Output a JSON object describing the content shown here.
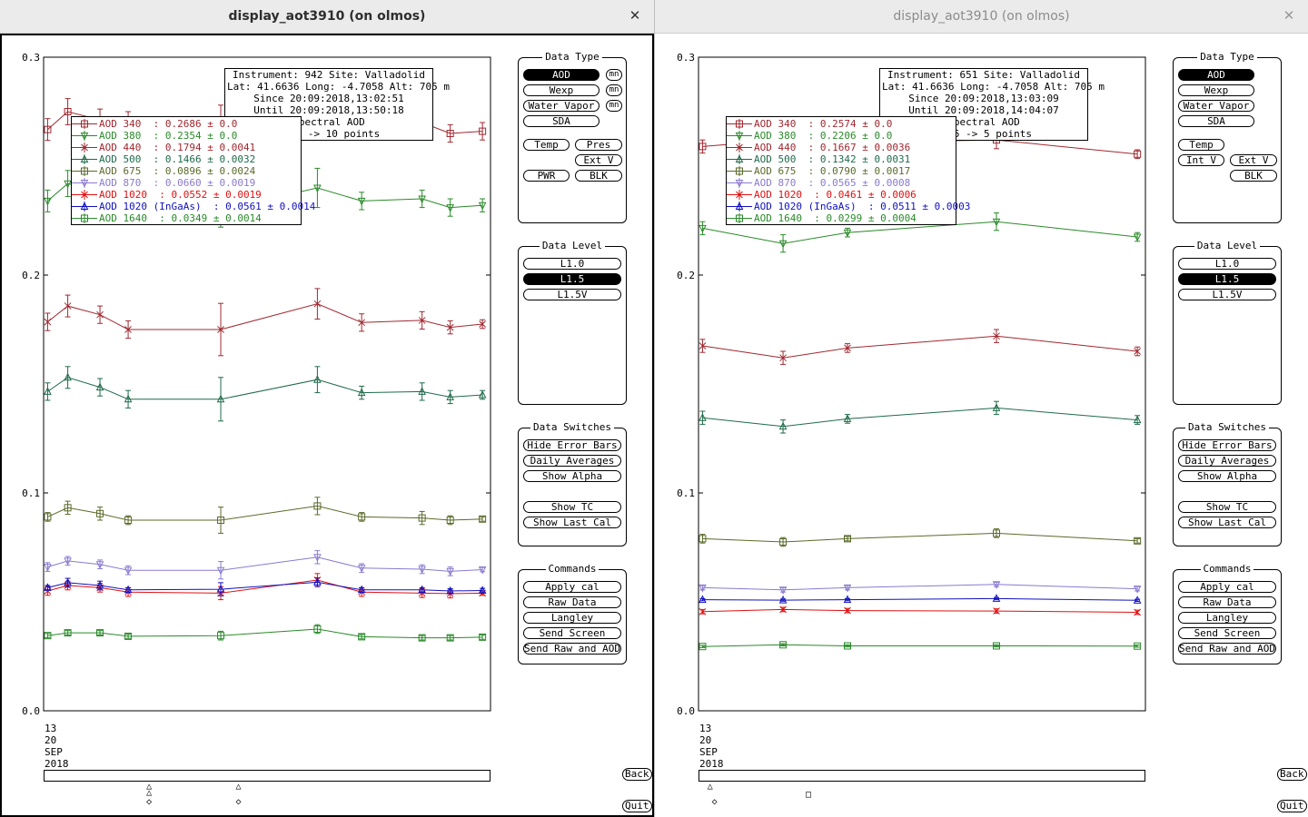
{
  "windows": [
    {
      "title": "display_aot3910 (on olmos)",
      "active": true,
      "info": {
        "lines": [
          "Instrument: 942 Site: Valladolid",
          "Lat: 41.6636 Long: -4.7058 Alt: 705 m",
          "Since 20:09:2018,13:02:51",
          "Until 20:09:2018,13:50:18",
          "Spectral AOD",
          "L1.5 -> 10 points"
        ]
      },
      "legend": [
        {
          "label": "AOD 340  : 0.2686 ± 0.0",
          "color": "#a02830",
          "marker": "square"
        },
        {
          "label": "AOD 380  : 0.2354 ± 0.0",
          "color": "#2a8a2a",
          "marker": "tri-down"
        },
        {
          "label": "AOD 440  : 0.1794 ± 0.0041",
          "color": "#a02830",
          "marker": "x"
        },
        {
          "label": "AOD 500  : 0.1466 ± 0.0032",
          "color": "#1f6a4a",
          "marker": "tri-up"
        },
        {
          "label": "AOD 675  : 0.0896 ± 0.0024",
          "color": "#5a6a2a",
          "marker": "square"
        },
        {
          "label": "AOD 870  : 0.0660 ± 0.0019",
          "color": "#8a7ad0",
          "marker": "tri-down"
        },
        {
          "label": "AOD 1020  : 0.0552 ± 0.0019",
          "color": "#e01010",
          "marker": "x"
        },
        {
          "label": "AOD 1020 (InGaAs)  : 0.0561 ± 0.0014",
          "color": "#1010c0",
          "marker": "tri-up"
        },
        {
          "label": "AOD 1640  : 0.0349 ± 0.0014",
          "color": "#2a8a2a",
          "marker": "square"
        }
      ],
      "date_label": [
        "13",
        "20",
        "SEP",
        "2018"
      ],
      "chart_data": {
        "type": "line",
        "ylim": [
          0,
          0.3
        ],
        "yticks": [
          "0.0",
          "0.1",
          "0.2",
          "0.3"
        ],
        "x": [
          0.5,
          3.0,
          7.0,
          10.5,
          22.0,
          34.0,
          39.5,
          47.0,
          50.5,
          54.5
        ],
        "xlim": [
          0,
          55.5
        ],
        "series": [
          {
            "name": "AOD 340",
            "color": "#a02830",
            "marker": "square",
            "values": [
              0.2668,
              0.275,
              0.2712,
              0.27,
              0.27,
              0.276,
              0.2705,
              0.27,
              0.265,
              0.266
            ],
            "err": [
              0.005,
              0.006,
              0.005,
              0.005,
              0.008,
              0.007,
              0.005,
              0.006,
              0.004,
              0.004
            ]
          },
          {
            "name": "AOD 380",
            "color": "#2a8a2a",
            "marker": "tri-down",
            "values": [
              0.234,
              0.242,
              0.238,
              0.233,
              0.23,
              0.24,
              0.234,
              0.235,
              0.231,
              0.232
            ],
            "err": [
              0.005,
              0.006,
              0.005,
              0.005,
              0.008,
              0.009,
              0.004,
              0.004,
              0.004,
              0.003
            ]
          },
          {
            "name": "AOD 440",
            "color": "#a02830",
            "marker": "x",
            "values": [
              0.1785,
              0.1858,
              0.1818,
              0.175,
              0.175,
              0.1868,
              0.1782,
              0.1792,
              0.176,
              0.1775
            ],
            "err": [
              0.004,
              0.005,
              0.004,
              0.004,
              0.012,
              0.007,
              0.004,
              0.004,
              0.003,
              0.002
            ]
          },
          {
            "name": "AOD 500",
            "color": "#1f6a4a",
            "marker": "tri-up",
            "values": [
              0.1465,
              0.153,
              0.1485,
              0.143,
              0.143,
              0.152,
              0.146,
              0.1465,
              0.144,
              0.145
            ],
            "err": [
              0.004,
              0.005,
              0.004,
              0.004,
              0.01,
              0.006,
              0.003,
              0.004,
              0.003,
              0.002
            ]
          },
          {
            "name": "AOD 675",
            "color": "#5a6a2a",
            "marker": "square",
            "values": [
              0.089,
              0.0932,
              0.0905,
              0.0875,
              0.0875,
              0.094,
              0.089,
              0.0885,
              0.0875,
              0.088
            ],
            "err": [
              0.002,
              0.003,
              0.003,
              0.002,
              0.006,
              0.004,
              0.002,
              0.003,
              0.002,
              0.001
            ]
          },
          {
            "name": "AOD 870",
            "color": "#8a7ad0",
            "marker": "tri-down",
            "values": [
              0.066,
              0.0688,
              0.0672,
              0.0645,
              0.0645,
              0.0705,
              0.0655,
              0.065,
              0.064,
              0.0648
            ],
            "err": [
              0.002,
              0.002,
              0.002,
              0.002,
              0.004,
              0.003,
              0.002,
              0.002,
              0.002,
              0.001
            ]
          },
          {
            "name": "AOD 1020",
            "color": "#e01010",
            "marker": "x",
            "values": [
              0.055,
              0.0575,
              0.0565,
              0.0545,
              0.054,
              0.06,
              0.0545,
              0.054,
              0.0538,
              0.054
            ],
            "err": [
              0.002,
              0.002,
              0.002,
              0.002,
              0.003,
              0.003,
              0.002,
              0.002,
              0.002,
              0.001
            ]
          },
          {
            "name": "AOD 1020 (InGaAs)",
            "color": "#1010c0",
            "marker": "tri-up",
            "values": [
              0.0565,
              0.0588,
              0.0575,
              0.0555,
              0.0558,
              0.059,
              0.0555,
              0.0555,
              0.055,
              0.0552
            ],
            "err": [
              0.001,
              0.002,
              0.002,
              0.001,
              0.003,
              0.002,
              0.001,
              0.001,
              0.001,
              0.001
            ]
          },
          {
            "name": "AOD 1640",
            "color": "#2a8a2a",
            "marker": "square",
            "values": [
              0.0345,
              0.0358,
              0.0358,
              0.0342,
              0.0345,
              0.0375,
              0.034,
              0.0335,
              0.0335,
              0.0338
            ],
            "err": [
              0.001,
              0.001,
              0.001,
              0.001,
              0.002,
              0.002,
              0.001,
              0.001,
              0.001,
              0.001
            ]
          }
        ]
      },
      "slider_marks": [
        {
          "pos": 0.24,
          "sym": "△",
          "row": 0
        },
        {
          "pos": 0.24,
          "sym": "△",
          "row": 0.4
        },
        {
          "pos": 0.24,
          "sym": "◇",
          "row": 1
        },
        {
          "pos": 0.44,
          "sym": "△",
          "row": 0
        },
        {
          "pos": 0.44,
          "sym": "◇",
          "row": 1
        }
      ],
      "panels": {
        "data_type": {
          "title": "Data Type",
          "buttons": [
            {
              "label": "AOD",
              "selected": true
            },
            {
              "label": "Wexp"
            },
            {
              "label": "Water Vapor"
            },
            {
              "label": "SDA"
            },
            {
              "label": "Temp"
            },
            {
              "label": "Pres"
            },
            {
              "label": "Ext V"
            },
            {
              "label": "PWR"
            },
            {
              "label": "BLK"
            }
          ],
          "mini": [
            "mn",
            "mn",
            "mn"
          ]
        },
        "data_level": {
          "title": "Data Level",
          "buttons": [
            {
              "label": "L1.0"
            },
            {
              "label": "L1.5",
              "selected": true
            },
            {
              "label": "L1.5V"
            }
          ]
        },
        "data_switches": {
          "title": "Data Switches",
          "buttons": [
            {
              "label": "Hide Error Bars"
            },
            {
              "label": "Daily Averages"
            },
            {
              "label": "Show Alpha"
            },
            {
              "label": "Show TC"
            },
            {
              "label": "Show Last Cal"
            }
          ]
        },
        "commands": {
          "title": "Commands",
          "buttons": [
            {
              "label": "Apply cal"
            },
            {
              "label": "Raw Data"
            },
            {
              "label": "Langley"
            },
            {
              "label": "Send Screen"
            },
            {
              "label": "Send Raw and AOD"
            }
          ]
        }
      },
      "back_label": "Back",
      "quit_label": "Quit"
    },
    {
      "title": "display_aot3910 (on olmos)",
      "active": false,
      "info": {
        "lines": [
          "Instrument: 651 Site: Valladolid",
          "Lat: 41.6636 Long: -4.7058 Alt: 705 m",
          "Since 20:09:2018,13:03:09",
          "Until 20:09:2018,14:04:07",
          "Spectral AOD",
          "L1.5 -> 5 points"
        ]
      },
      "legend": [
        {
          "label": "AOD 340  : 0.2574 ± 0.0",
          "color": "#a02830",
          "marker": "square"
        },
        {
          "label": "AOD 380  : 0.2206 ± 0.0",
          "color": "#2a8a2a",
          "marker": "tri-down"
        },
        {
          "label": "AOD 440  : 0.1667 ± 0.0036",
          "color": "#a02830",
          "marker": "x"
        },
        {
          "label": "AOD 500  : 0.1342 ± 0.0031",
          "color": "#1f6a4a",
          "marker": "tri-up"
        },
        {
          "label": "AOD 675  : 0.0790 ± 0.0017",
          "color": "#5a6a2a",
          "marker": "square"
        },
        {
          "label": "AOD 870  : 0.0565 ± 0.0008",
          "color": "#8a7ad0",
          "marker": "tri-down"
        },
        {
          "label": "AOD 1020  : 0.0461 ± 0.0006",
          "color": "#e01010",
          "marker": "x"
        },
        {
          "label": "AOD 1020 (InGaAs)  : 0.0511 ± 0.0003",
          "color": "#1010c0",
          "marker": "tri-up"
        },
        {
          "label": "AOD 1640  : 0.0299 ± 0.0004",
          "color": "#2a8a2a",
          "marker": "square"
        }
      ],
      "date_label": [
        "13",
        "20",
        "SEP",
        "2018"
      ],
      "chart_data": {
        "type": "line",
        "ylim": [
          0,
          0.3
        ],
        "yticks": [
          "0.0",
          "0.1",
          "0.2",
          "0.3"
        ],
        "x": [
          0.5,
          10.5,
          18.5,
          37.0,
          54.5
        ],
        "xlim": [
          0,
          55.5
        ],
        "series": [
          {
            "name": "AOD 340",
            "color": "#a02830",
            "marker": "square",
            "values": [
              0.259,
              0.262,
              0.261,
              0.262,
              0.2555
            ],
            "err": [
              0.003,
              0.004,
              0.003,
              0.004,
              0.002
            ]
          },
          {
            "name": "AOD 380",
            "color": "#2a8a2a",
            "marker": "tri-down",
            "values": [
              0.2215,
              0.2145,
              0.2195,
              0.2245,
              0.2175
            ],
            "err": [
              0.003,
              0.004,
              0.002,
              0.004,
              0.002
            ]
          },
          {
            "name": "AOD 440",
            "color": "#a02830",
            "marker": "x",
            "values": [
              0.1675,
              0.162,
              0.1665,
              0.172,
              0.165
            ],
            "err": [
              0.003,
              0.003,
              0.002,
              0.003,
              0.002
            ]
          },
          {
            "name": "AOD 500",
            "color": "#1f6a4a",
            "marker": "tri-up",
            "values": [
              0.1345,
              0.1305,
              0.134,
              0.139,
              0.1335
            ],
            "err": [
              0.003,
              0.003,
              0.002,
              0.003,
              0.002
            ]
          },
          {
            "name": "AOD 675",
            "color": "#5a6a2a",
            "marker": "square",
            "values": [
              0.079,
              0.0775,
              0.079,
              0.0815,
              0.078
            ],
            "err": [
              0.002,
              0.002,
              0.001,
              0.002,
              0.001
            ]
          },
          {
            "name": "AOD 870",
            "color": "#8a7ad0",
            "marker": "tri-down",
            "values": [
              0.0565,
              0.0555,
              0.0565,
              0.058,
              0.056
            ],
            "err": [
              0.001,
              0.001,
              0.001,
              0.001,
              0.001
            ]
          },
          {
            "name": "AOD 1020",
            "color": "#e01010",
            "marker": "x",
            "values": [
              0.0455,
              0.0465,
              0.046,
              0.0458,
              0.0452
            ],
            "err": [
              0.001,
              0.001,
              0.001,
              0.001,
              0.001
            ]
          },
          {
            "name": "AOD 1020 (InGaAs)",
            "color": "#1010c0",
            "marker": "tri-up",
            "values": [
              0.051,
              0.0508,
              0.051,
              0.0515,
              0.0507
            ],
            "err": [
              0.0005,
              0.0005,
              0.0005,
              0.0005,
              0.0005
            ]
          },
          {
            "name": "AOD 1640",
            "color": "#2a8a2a",
            "marker": "square",
            "values": [
              0.0295,
              0.0303,
              0.0298,
              0.0298,
              0.0297
            ],
            "err": [
              0.0005,
              0.0005,
              0.0005,
              0.0005,
              0.0005
            ]
          }
        ]
      },
      "slider_marks": [
        {
          "pos": 0.03,
          "sym": "△",
          "row": 0
        },
        {
          "pos": 0.04,
          "sym": "◇",
          "row": 1
        },
        {
          "pos": 0.25,
          "sym": "□",
          "row": 0.5
        }
      ],
      "panels": {
        "data_type": {
          "title": "Data Type",
          "buttons": [
            {
              "label": "AOD",
              "selected": true
            },
            {
              "label": "Wexp"
            },
            {
              "label": "Water Vapor"
            },
            {
              "label": "SDA"
            },
            {
              "label": "Temp"
            },
            {
              "label": "Int V"
            },
            {
              "label": "Ext V"
            },
            {
              "label": "BLK"
            }
          ],
          "mini": []
        },
        "data_level": {
          "title": "Data Level",
          "buttons": [
            {
              "label": "L1.0"
            },
            {
              "label": "L1.5",
              "selected": true
            },
            {
              "label": "L1.5V"
            }
          ]
        },
        "data_switches": {
          "title": "Data Switches",
          "buttons": [
            {
              "label": "Hide Error Bars"
            },
            {
              "label": "Daily Averages"
            },
            {
              "label": "Show Alpha"
            },
            {
              "label": "Show TC"
            },
            {
              "label": "Show Last Cal"
            }
          ]
        },
        "commands": {
          "title": "Commands",
          "buttons": [
            {
              "label": "Apply cal"
            },
            {
              "label": "Raw Data"
            },
            {
              "label": "Langley"
            },
            {
              "label": "Send Screen"
            },
            {
              "label": "Send Raw and AOD"
            }
          ]
        }
      },
      "back_label": "Back",
      "quit_label": "Quit"
    }
  ]
}
